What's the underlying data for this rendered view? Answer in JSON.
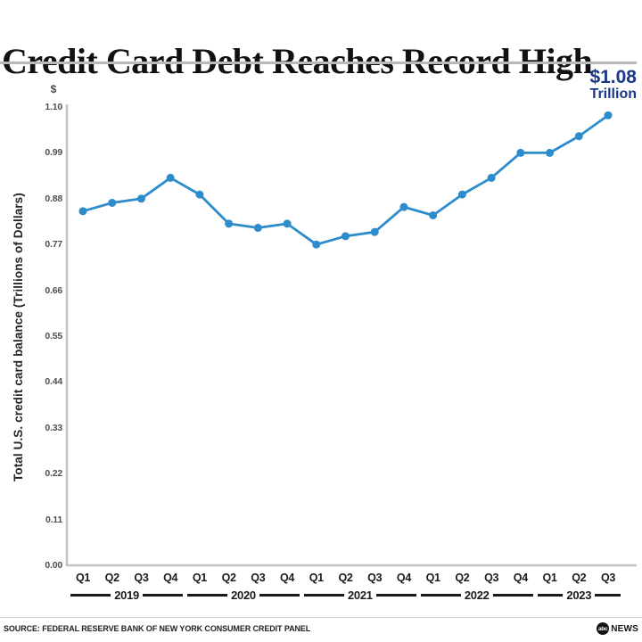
{
  "header": {
    "title": "Credit Card Debt Reaches Record High"
  },
  "annotation": {
    "value": "$1.08",
    "unit": "Trillion",
    "color": "#1a3789"
  },
  "chart_data": {
    "type": "line",
    "title": "Credit Card Debt Reaches Record High",
    "ylabel": "Total U.S. credit card balance (Trillions of Dollars)",
    "y_axis_unit": "$",
    "categories": [
      "Q1",
      "Q2",
      "Q3",
      "Q4",
      "Q1",
      "Q2",
      "Q3",
      "Q4",
      "Q1",
      "Q2",
      "Q3",
      "Q4",
      "Q1",
      "Q2",
      "Q3",
      "Q4",
      "Q1",
      "Q2",
      "Q3"
    ],
    "year_groups": [
      {
        "label": "2019",
        "quarters": 4
      },
      {
        "label": "2020",
        "quarters": 4
      },
      {
        "label": "2021",
        "quarters": 4
      },
      {
        "label": "2022",
        "quarters": 4
      },
      {
        "label": "2023",
        "quarters": 3
      }
    ],
    "series": [
      {
        "name": "Total U.S. credit card balance",
        "values": [
          0.85,
          0.87,
          0.88,
          0.93,
          0.89,
          0.82,
          0.81,
          0.82,
          0.77,
          0.79,
          0.8,
          0.86,
          0.84,
          0.89,
          0.93,
          0.99,
          0.99,
          1.03,
          1.08
        ]
      }
    ],
    "yticks": [
      "1.10",
      "0.99",
      "0.88",
      "0.77",
      "0.66",
      "0.55",
      "0.44",
      "0.33",
      "0.22",
      "0.11",
      "0.00"
    ],
    "ylim": [
      0,
      1.1
    ],
    "grid": "off",
    "line_color": "#2d8ccb",
    "axis_color": "#c4c4c4"
  },
  "footer": {
    "source": "SOURCE: FEDERAL RESERVE BANK OF NEW YORK CONSUMER CREDIT PANEL",
    "logo": {
      "abc": "abc",
      "news": "NEWS"
    }
  }
}
